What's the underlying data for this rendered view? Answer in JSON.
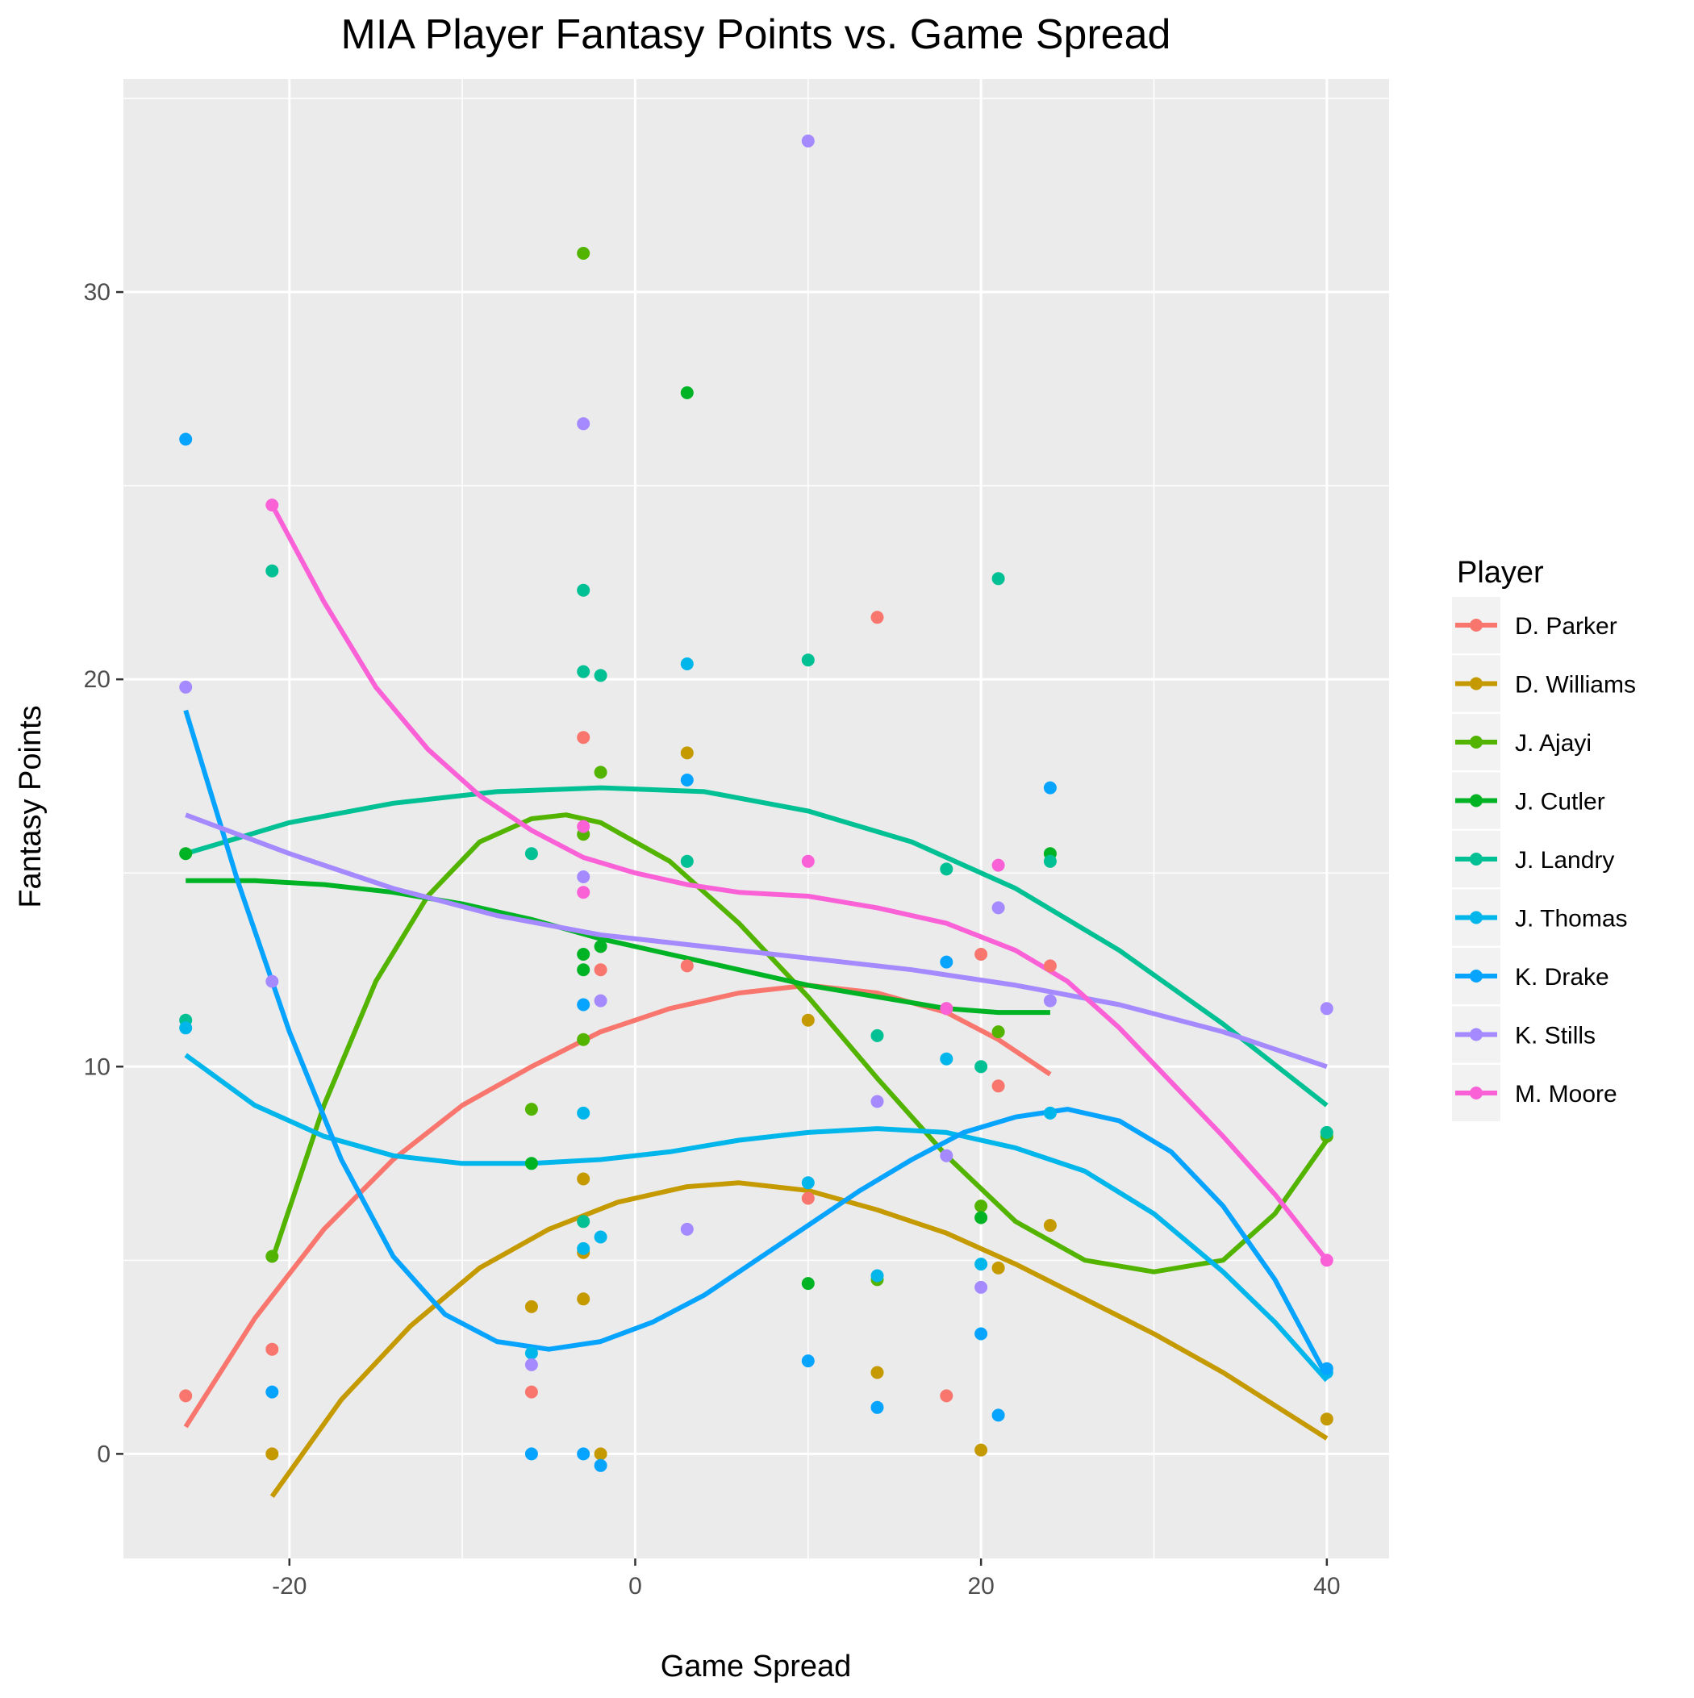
{
  "chart_data": {
    "type": "scatter",
    "title": "MIA Player Fantasy Points vs. Game Spread",
    "xlabel": "Game Spread",
    "ylabel": "Fantasy Points",
    "xlim": [
      -29.6,
      43.6
    ],
    "ylim": [
      -2.7,
      35.5
    ],
    "x_ticks": [
      -20,
      0,
      20,
      40
    ],
    "y_ticks": [
      0,
      10,
      20,
      30
    ],
    "grid": true,
    "legend_title": "Player",
    "legend_position": "right",
    "series": [
      {
        "name": "D. Parker",
        "color": "#F8766D",
        "points": [
          [
            -26,
            1.5
          ],
          [
            -21,
            2.7
          ],
          [
            -6,
            1.6
          ],
          [
            -3,
            18.5
          ],
          [
            -2,
            12.5
          ],
          [
            3,
            12.6
          ],
          [
            10,
            6.6
          ],
          [
            14,
            21.6
          ],
          [
            18,
            1.5
          ],
          [
            18,
            11.5
          ],
          [
            20,
            12.9
          ],
          [
            21,
            9.5
          ],
          [
            24,
            12.6
          ]
        ],
        "smooth": [
          [
            -26,
            0.7
          ],
          [
            -22,
            3.5
          ],
          [
            -18,
            5.8
          ],
          [
            -14,
            7.6
          ],
          [
            -10,
            9.0
          ],
          [
            -6,
            10.0
          ],
          [
            -2,
            10.9
          ],
          [
            2,
            11.5
          ],
          [
            6,
            11.9
          ],
          [
            10,
            12.1
          ],
          [
            14,
            11.9
          ],
          [
            18,
            11.4
          ],
          [
            21,
            10.7
          ],
          [
            24,
            9.8
          ]
        ]
      },
      {
        "name": "D. Williams",
        "color": "#C49A00",
        "points": [
          [
            -21,
            0.0
          ],
          [
            -6,
            3.8
          ],
          [
            -3,
            5.2
          ],
          [
            -3,
            4.0
          ],
          [
            -3,
            7.1
          ],
          [
            -2,
            0.0
          ],
          [
            3,
            18.1
          ],
          [
            10,
            11.2
          ],
          [
            14,
            2.1
          ],
          [
            20,
            0.1
          ],
          [
            21,
            4.8
          ],
          [
            24,
            5.9
          ],
          [
            40,
            0.9
          ]
        ],
        "smooth": [
          [
            -21,
            -1.1
          ],
          [
            -17,
            1.4
          ],
          [
            -13,
            3.3
          ],
          [
            -9,
            4.8
          ],
          [
            -5,
            5.8
          ],
          [
            -1,
            6.5
          ],
          [
            3,
            6.9
          ],
          [
            6,
            7.0
          ],
          [
            10,
            6.8
          ],
          [
            14,
            6.3
          ],
          [
            18,
            5.7
          ],
          [
            22,
            4.9
          ],
          [
            26,
            4.0
          ],
          [
            30,
            3.1
          ],
          [
            34,
            2.1
          ],
          [
            40,
            0.4
          ]
        ]
      },
      {
        "name": "J. Ajayi",
        "color": "#53B400",
        "points": [
          [
            -21,
            5.1
          ],
          [
            -6,
            8.9
          ],
          [
            -3,
            31.0
          ],
          [
            -3,
            16.0
          ],
          [
            -3,
            10.7
          ],
          [
            -2,
            17.6
          ],
          [
            14,
            4.5
          ],
          [
            20,
            6.4
          ],
          [
            21,
            10.9
          ],
          [
            40,
            8.2
          ]
        ],
        "smooth": [
          [
            -21,
            5.0
          ],
          [
            -18,
            9.0
          ],
          [
            -15,
            12.2
          ],
          [
            -12,
            14.4
          ],
          [
            -9,
            15.8
          ],
          [
            -6,
            16.4
          ],
          [
            -4,
            16.5
          ],
          [
            -2,
            16.3
          ],
          [
            2,
            15.3
          ],
          [
            6,
            13.7
          ],
          [
            10,
            11.8
          ],
          [
            14,
            9.7
          ],
          [
            18,
            7.7
          ],
          [
            22,
            6.0
          ],
          [
            26,
            5.0
          ],
          [
            30,
            4.7
          ],
          [
            34,
            5.0
          ],
          [
            37,
            6.2
          ],
          [
            40,
            8.1
          ]
        ]
      },
      {
        "name": "J. Cutler",
        "color": "#00B325",
        "points": [
          [
            -26,
            15.5
          ],
          [
            -6,
            7.5
          ],
          [
            -3,
            12.9
          ],
          [
            -3,
            12.5
          ],
          [
            -2,
            13.1
          ],
          [
            3,
            27.4
          ],
          [
            10,
            4.4
          ],
          [
            20,
            6.1
          ],
          [
            24,
            15.5
          ]
        ],
        "smooth": [
          [
            -26,
            14.8
          ],
          [
            -22,
            14.8
          ],
          [
            -18,
            14.7
          ],
          [
            -14,
            14.5
          ],
          [
            -10,
            14.2
          ],
          [
            -6,
            13.8
          ],
          [
            -2,
            13.3
          ],
          [
            2,
            12.9
          ],
          [
            6,
            12.5
          ],
          [
            10,
            12.1
          ],
          [
            14,
            11.8
          ],
          [
            18,
            11.5
          ],
          [
            21,
            11.4
          ],
          [
            24,
            11.4
          ]
        ]
      },
      {
        "name": "J. Landry",
        "color": "#00C094",
        "points": [
          [
            -26,
            11.2
          ],
          [
            -21,
            22.8
          ],
          [
            -6,
            15.5
          ],
          [
            -3,
            22.3
          ],
          [
            -3,
            20.2
          ],
          [
            -3,
            6.0
          ],
          [
            -2,
            20.1
          ],
          [
            3,
            15.3
          ],
          [
            10,
            20.5
          ],
          [
            14,
            10.8
          ],
          [
            18,
            15.1
          ],
          [
            20,
            10.0
          ],
          [
            21,
            22.6
          ],
          [
            24,
            15.3
          ],
          [
            40,
            8.3
          ]
        ],
        "smooth": [
          [
            -26,
            15.5
          ],
          [
            -20,
            16.3
          ],
          [
            -14,
            16.8
          ],
          [
            -8,
            17.1
          ],
          [
            -2,
            17.2
          ],
          [
            4,
            17.1
          ],
          [
            10,
            16.6
          ],
          [
            16,
            15.8
          ],
          [
            22,
            14.6
          ],
          [
            28,
            13.0
          ],
          [
            34,
            11.1
          ],
          [
            40,
            9.0
          ]
        ]
      },
      {
        "name": "J. Thomas",
        "color": "#00B6EB",
        "points": [
          [
            -26,
            11.0
          ],
          [
            -6,
            2.6
          ],
          [
            -3,
            8.8
          ],
          [
            -3,
            5.3
          ],
          [
            -2,
            5.6
          ],
          [
            3,
            20.4
          ],
          [
            10,
            7.0
          ],
          [
            14,
            4.6
          ],
          [
            18,
            10.2
          ],
          [
            20,
            4.9
          ],
          [
            24,
            8.8
          ],
          [
            40,
            2.1
          ]
        ],
        "smooth": [
          [
            -26,
            10.3
          ],
          [
            -22,
            9.0
          ],
          [
            -18,
            8.2
          ],
          [
            -14,
            7.7
          ],
          [
            -10,
            7.5
          ],
          [
            -6,
            7.5
          ],
          [
            -2,
            7.6
          ],
          [
            2,
            7.8
          ],
          [
            6,
            8.1
          ],
          [
            10,
            8.3
          ],
          [
            14,
            8.4
          ],
          [
            18,
            8.3
          ],
          [
            22,
            7.9
          ],
          [
            26,
            7.3
          ],
          [
            30,
            6.2
          ],
          [
            34,
            4.7
          ],
          [
            37,
            3.4
          ],
          [
            40,
            1.9
          ]
        ]
      },
      {
        "name": "K. Drake",
        "color": "#06A4FF",
        "points": [
          [
            -26,
            26.2
          ],
          [
            -21,
            1.6
          ],
          [
            -6,
            0.0
          ],
          [
            -3,
            11.6
          ],
          [
            -3,
            0.0
          ],
          [
            -2,
            -0.3
          ],
          [
            3,
            17.4
          ],
          [
            10,
            2.4
          ],
          [
            14,
            1.2
          ],
          [
            18,
            12.7
          ],
          [
            20,
            3.1
          ],
          [
            21,
            1.0
          ],
          [
            24,
            17.2
          ],
          [
            40,
            2.2
          ]
        ],
        "smooth": [
          [
            -26,
            19.2
          ],
          [
            -23,
            14.8
          ],
          [
            -20,
            10.9
          ],
          [
            -17,
            7.6
          ],
          [
            -14,
            5.1
          ],
          [
            -11,
            3.6
          ],
          [
            -8,
            2.9
          ],
          [
            -5,
            2.7
          ],
          [
            -2,
            2.9
          ],
          [
            1,
            3.4
          ],
          [
            4,
            4.1
          ],
          [
            7,
            5.0
          ],
          [
            10,
            5.9
          ],
          [
            13,
            6.8
          ],
          [
            16,
            7.6
          ],
          [
            19,
            8.3
          ],
          [
            22,
            8.7
          ],
          [
            25,
            8.9
          ],
          [
            28,
            8.6
          ],
          [
            31,
            7.8
          ],
          [
            34,
            6.4
          ],
          [
            37,
            4.5
          ],
          [
            40,
            2.0
          ]
        ]
      },
      {
        "name": "K. Stills",
        "color": "#A58AFF",
        "points": [
          [
            -26,
            19.8
          ],
          [
            -21,
            12.2
          ],
          [
            -6,
            2.3
          ],
          [
            -3,
            26.6
          ],
          [
            -3,
            14.9
          ],
          [
            -2,
            11.7
          ],
          [
            3,
            5.8
          ],
          [
            10,
            33.9
          ],
          [
            14,
            9.1
          ],
          [
            18,
            7.7
          ],
          [
            20,
            4.3
          ],
          [
            21,
            14.1
          ],
          [
            24,
            11.7
          ],
          [
            40,
            11.5
          ]
        ],
        "smooth": [
          [
            -26,
            16.5
          ],
          [
            -20,
            15.5
          ],
          [
            -14,
            14.6
          ],
          [
            -8,
            13.9
          ],
          [
            -2,
            13.4
          ],
          [
            4,
            13.1
          ],
          [
            10,
            12.8
          ],
          [
            16,
            12.5
          ],
          [
            22,
            12.1
          ],
          [
            28,
            11.6
          ],
          [
            34,
            10.9
          ],
          [
            40,
            10.0
          ]
        ]
      },
      {
        "name": "M. Moore",
        "color": "#FB61D7",
        "points": [
          [
            -21,
            24.5
          ],
          [
            -3,
            16.2
          ],
          [
            -3,
            14.5
          ],
          [
            10,
            15.3
          ],
          [
            18,
            11.5
          ],
          [
            21,
            15.2
          ],
          [
            40,
            5.0
          ]
        ],
        "smooth": [
          [
            -21,
            24.5
          ],
          [
            -18,
            22.0
          ],
          [
            -15,
            19.8
          ],
          [
            -12,
            18.2
          ],
          [
            -9,
            17.0
          ],
          [
            -6,
            16.1
          ],
          [
            -3,
            15.4
          ],
          [
            0,
            15.0
          ],
          [
            3,
            14.7
          ],
          [
            6,
            14.5
          ],
          [
            10,
            14.4
          ],
          [
            14,
            14.1
          ],
          [
            18,
            13.7
          ],
          [
            22,
            13.0
          ],
          [
            25,
            12.2
          ],
          [
            28,
            11.0
          ],
          [
            31,
            9.6
          ],
          [
            34,
            8.2
          ],
          [
            37,
            6.7
          ],
          [
            40,
            5.0
          ]
        ]
      }
    ]
  }
}
